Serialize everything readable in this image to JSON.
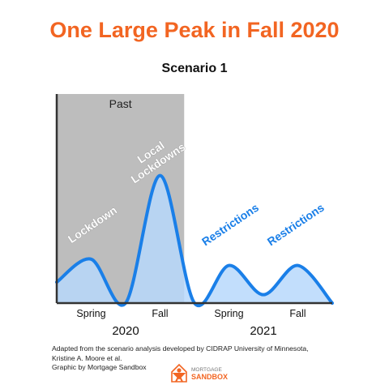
{
  "title": "One Large Peak in Fall 2020",
  "subtitle": "Scenario 1",
  "colors": {
    "title": "#f26522",
    "past_shade": "#bdbdbd",
    "line": "#1a7fe8",
    "fill": "#b7d8fb",
    "annotation": "#1a7fe8",
    "annotation_light": "#ffffff",
    "logo_orange": "#f26522"
  },
  "chart_data": {
    "type": "area",
    "title": "Scenario 1",
    "x": [
      0,
      0.5,
      1,
      1.5,
      2,
      2.5,
      3,
      3.5,
      4
    ],
    "tick_labels": [
      "Spring",
      "Fall",
      "Spring",
      "Fall"
    ],
    "tick_positions": [
      0.5,
      1.5,
      2.5,
      3.5
    ],
    "year_labels": [
      "2020",
      "2021"
    ],
    "year_positions": [
      1,
      3
    ],
    "series": [
      {
        "values": [
          0.1,
          0.21,
          0.0,
          0.61,
          0.0,
          0.18,
          0.04,
          0.18,
          0.0
        ]
      }
    ],
    "ylim": [
      0,
      1
    ],
    "xlim": [
      0,
      4
    ],
    "past_region": {
      "label": "Past",
      "x_end": 1.85
    },
    "annotations": [
      {
        "text": "Lockdown",
        "x": 0.55,
        "y": 0.36,
        "style": "light"
      },
      {
        "text": "Local\nLockdowns",
        "x": 1.45,
        "y": 0.68,
        "style": "light"
      },
      {
        "text": "Restrictions",
        "x": 2.55,
        "y": 0.36,
        "style": "blue"
      },
      {
        "text": "Restrictions",
        "x": 3.5,
        "y": 0.36,
        "style": "blue"
      }
    ],
    "grid": false
  },
  "credit": {
    "line1": "Adapted from the scenario analysis developed by CIDRAP University of Minnesota,",
    "line2": "Kristine A. Moore et al.",
    "line3": "Graphic by Mortgage Sandbox"
  },
  "logo": {
    "icon": "house-person-icon",
    "text_top": "MORTGAGE",
    "text_bottom": "SANDBOX"
  }
}
